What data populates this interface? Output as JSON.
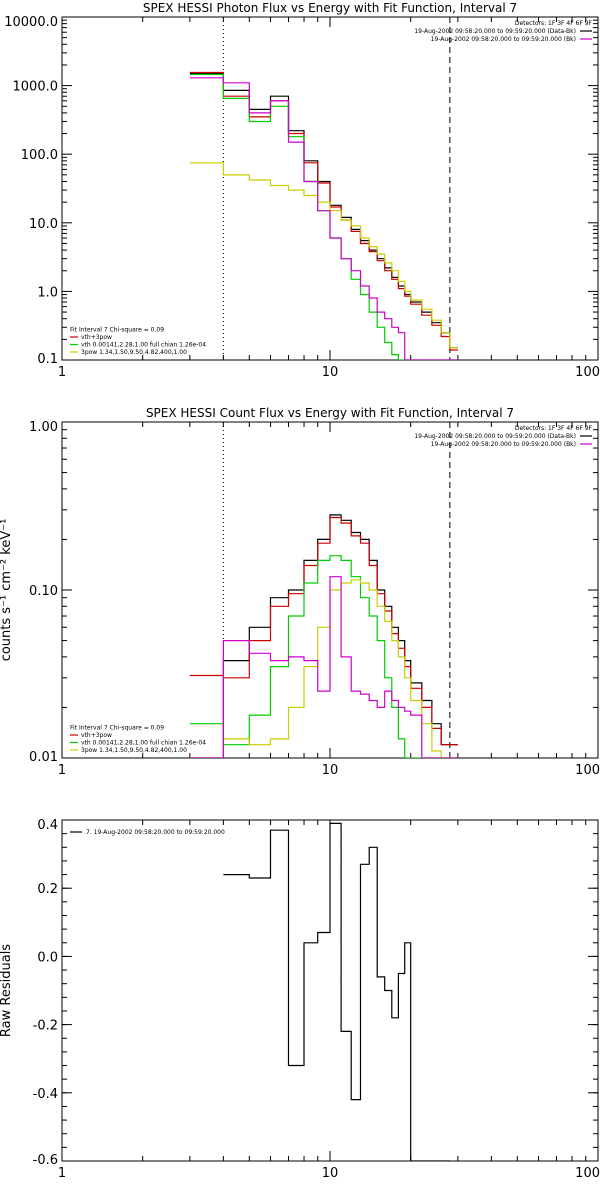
{
  "chart_data": [
    {
      "type": "line",
      "title": "SPEX HESSI Photon Flux vs Energy with Fit Function, Interval 7",
      "xscale": "log",
      "yscale": "log",
      "xlim": [
        1,
        100
      ],
      "ylim": [
        0.1,
        10000
      ],
      "xticks": [
        1,
        10,
        100
      ],
      "xtick_labels": [
        "1",
        "10",
        "100"
      ],
      "yticks": [
        0.1,
        1,
        10,
        100,
        1000,
        10000
      ],
      "ytick_labels": [
        "0.1",
        "1.0",
        "10.0",
        "100.0",
        "1000.0",
        "10000.0"
      ],
      "ylabel": "",
      "xlabel": "",
      "vlines": [
        {
          "x": 4,
          "style": "dotted"
        },
        {
          "x": 28,
          "style": "dashed"
        }
      ],
      "legend_top": {
        "position": "top-right",
        "lines": [
          {
            "text": "Detectors: 1F 3F 4F 6F 9F",
            "color": ""
          },
          {
            "text": "19-Aug-2002 09:58:20.000 to 09:59:20.000 (Data-Bk)",
            "color": "#000000"
          },
          {
            "text": "19-Aug-2002 09:58:20.000 to 09:59:20.000 (Bk)",
            "color": "#cc00cc"
          }
        ]
      },
      "legend_bottom": {
        "position": "bottom-left",
        "lines": [
          {
            "text": "Fit Interval 7   Chi-square = 0.09",
            "color": "#000000"
          },
          {
            "text": "vth+3pow",
            "color": "#cc0000"
          },
          {
            "text": "vth 0.00141,2.28,1.00  full chian 1.26e-04",
            "color": "#00cc00"
          },
          {
            "text": "3pow 1.34,1.50,9.50,4.82,400,1.00",
            "color": "#cccc00"
          }
        ]
      },
      "edges": [
        3,
        4,
        5,
        6,
        7,
        8,
        9,
        10,
        11,
        12,
        13,
        14,
        15,
        16,
        17,
        18,
        19,
        20,
        22,
        24,
        26,
        28,
        30
      ],
      "series": [
        {
          "name": "",
          "color": "#000000",
          "values": [
            1500,
            850,
            450,
            700,
            220,
            80,
            40,
            18,
            12,
            8,
            5.5,
            4,
            3,
            2.2,
            1.6,
            1.2,
            0.9,
            0.7,
            0.5,
            0.35,
            0.25,
            0.15
          ]
        },
        {
          "name": "vth+3pow",
          "color": "#cc0000",
          "values": [
            1550,
            700,
            350,
            600,
            200,
            75,
            38,
            17,
            11,
            7.5,
            5,
            3.8,
            2.8,
            2,
            1.5,
            1.1,
            0.85,
            0.65,
            0.45,
            0.32,
            0.22,
            0.14
          ]
        },
        {
          "name": "vth 0.00141,2.28,1.00  full chian 1.26e-04",
          "color": "#00cc00",
          "values": [
            1450,
            650,
            300,
            500,
            180,
            40,
            15,
            6,
            3,
            1.5,
            0.9,
            0.5,
            0.3,
            0.18,
            0.12,
            0.1,
            0.1,
            0.1,
            0.1,
            0.1,
            0.1,
            0.1
          ]
        },
        {
          "name": "3pow 1.34,1.50,9.50,4.82,400,1.00",
          "color": "#cccc00",
          "values": [
            75,
            50,
            42,
            35,
            30,
            25,
            20,
            15,
            11,
            9,
            6,
            4.5,
            3.5,
            2.6,
            2,
            1.4,
            1,
            0.75,
            0.55,
            0.38,
            0.25,
            0.15
          ]
        },
        {
          "name": "",
          "color": "#cc00cc",
          "values": [
            1300,
            1100,
            400,
            600,
            150,
            40,
            15,
            6,
            3,
            2,
            1.2,
            0.8,
            0.5,
            0.4,
            0.3,
            0.25,
            0.1,
            0.1,
            0.1,
            0.1,
            0.1,
            0.1
          ]
        }
      ]
    },
    {
      "type": "line",
      "title": "SPEX HESSI Count Flux vs Energy with Fit Function, Interval 7",
      "xscale": "log",
      "yscale": "log",
      "xlim": [
        1,
        100
      ],
      "ylim": [
        0.01,
        1
      ],
      "xticks": [
        1,
        10,
        100
      ],
      "xtick_labels": [
        "1",
        "10",
        "100"
      ],
      "yticks": [
        0.01,
        0.1,
        1
      ],
      "ytick_labels": [
        "0.01",
        "0.10",
        "1.00"
      ],
      "ylabel": "counts s⁻¹ cm⁻² keV⁻¹",
      "xlabel": "",
      "vlines": [
        {
          "x": 4,
          "style": "dotted"
        },
        {
          "x": 28,
          "style": "dashed"
        }
      ],
      "legend_top": {
        "position": "top-right",
        "lines": [
          {
            "text": "Detectors: 1F 3F 4F 6F 9F",
            "color": ""
          },
          {
            "text": "19-Aug-2002 09:58:20.000 to 09:59:20.000 (Data-Bk)",
            "color": "#000000"
          },
          {
            "text": "19-Aug-2002 09:58:20.000 to 09:59:20.000 (Bk)",
            "color": "#cc00cc"
          }
        ]
      },
      "legend_bottom": {
        "position": "bottom-left",
        "lines": [
          {
            "text": "Fit Interval 7   Chi-square = 0.09",
            "color": "#000000"
          },
          {
            "text": "vth+3pow",
            "color": "#cc0000"
          },
          {
            "text": "vth 0.00141,2.28,1.00  full chian 1.26e-04",
            "color": "#00cc00"
          },
          {
            "text": "3pow 1.34,1.50,9.50,4.82,400,1.00",
            "color": "#cccc00"
          }
        ]
      },
      "edges": [
        3,
        4,
        5,
        6,
        7,
        8,
        9,
        10,
        11,
        12,
        13,
        14,
        15,
        16,
        17,
        18,
        19,
        20,
        22,
        24,
        26,
        28,
        30
      ],
      "series": [
        {
          "name": "",
          "color": "#000000",
          "values": [
            0.01,
            0.038,
            0.06,
            0.09,
            0.1,
            0.15,
            0.2,
            0.28,
            0.26,
            0.22,
            0.2,
            0.15,
            0.1,
            0.08,
            0.06,
            0.05,
            0.038,
            0.028,
            0.022,
            0.016,
            0.012,
            0.012
          ]
        },
        {
          "name": "vth+3pow",
          "color": "#cc0000",
          "values": [
            0.031,
            0.03,
            0.05,
            0.08,
            0.095,
            0.14,
            0.19,
            0.27,
            0.25,
            0.21,
            0.19,
            0.14,
            0.095,
            0.075,
            0.055,
            0.045,
            0.035,
            0.026,
            0.02,
            0.015,
            0.012,
            0.012
          ]
        },
        {
          "name": "vth 0.00141,2.28,1.00  full chian 1.26e-04",
          "color": "#00cc00",
          "values": [
            0.016,
            0.012,
            0.018,
            0.035,
            0.07,
            0.11,
            0.15,
            0.16,
            0.15,
            0.12,
            0.09,
            0.07,
            0.05,
            0.03,
            0.02,
            0.013,
            0.01,
            0.01,
            0.01,
            0.01,
            0.01,
            0.01
          ]
        },
        {
          "name": "3pow 1.34,1.50,9.50,4.82,400,1.00",
          "color": "#cccc00",
          "values": [
            0.01,
            0.013,
            0.012,
            0.013,
            0.02,
            0.035,
            0.06,
            0.1,
            0.11,
            0.115,
            0.11,
            0.1,
            0.08,
            0.065,
            0.05,
            0.04,
            0.03,
            0.022,
            0.016,
            0.011,
            0.01,
            0.01
          ]
        },
        {
          "name": "",
          "color": "#cc00cc",
          "values": [
            0.01,
            0.05,
            0.042,
            0.038,
            0.04,
            0.038,
            0.025,
            0.12,
            0.04,
            0.025,
            0.024,
            0.022,
            0.02,
            0.025,
            0.022,
            0.02,
            0.019,
            0.018,
            0.01,
            0.01,
            0.01,
            0.01
          ]
        }
      ]
    },
    {
      "type": "line",
      "title": "",
      "xscale": "log",
      "yscale": "linear",
      "xlim": [
        1,
        100
      ],
      "ylim": [
        -0.6,
        0.4
      ],
      "xticks": [
        1,
        10,
        100
      ],
      "xtick_labels": [
        "1",
        "10",
        "100"
      ],
      "yticks": [
        -0.6,
        -0.4,
        -0.2,
        0.0,
        0.2,
        0.4
      ],
      "ytick_labels": [
        "-0.6",
        "-0.4",
        "-0.2",
        "0.0",
        "0.2",
        "0.4"
      ],
      "ylabel": "Raw Residuals",
      "xlabel": "",
      "legend_top": {
        "position": "top-left",
        "lines": [
          {
            "text": "7. 19-Aug-2002 09:58:20.000 to 09:59:20.000",
            "color": "#000000"
          }
        ]
      },
      "edges": [
        4,
        5,
        6,
        7,
        8,
        9,
        10,
        11,
        12,
        13,
        14,
        15,
        16,
        17,
        18,
        19,
        20,
        22,
        24,
        26,
        28
      ],
      "series": [
        {
          "name": "7. 19-Aug-2002 09:58:20.000 to 09:59:20.000",
          "color": "#000000",
          "values": [
            0.24,
            0.23,
            0.37,
            -0.32,
            0.04,
            0.07,
            0.39,
            -0.22,
            -0.42,
            0.27,
            0.32,
            -0.06,
            -0.1,
            -0.18,
            -0.05,
            0.04,
            -0.6,
            -0.6,
            -0.6,
            -0.6
          ]
        }
      ]
    }
  ]
}
